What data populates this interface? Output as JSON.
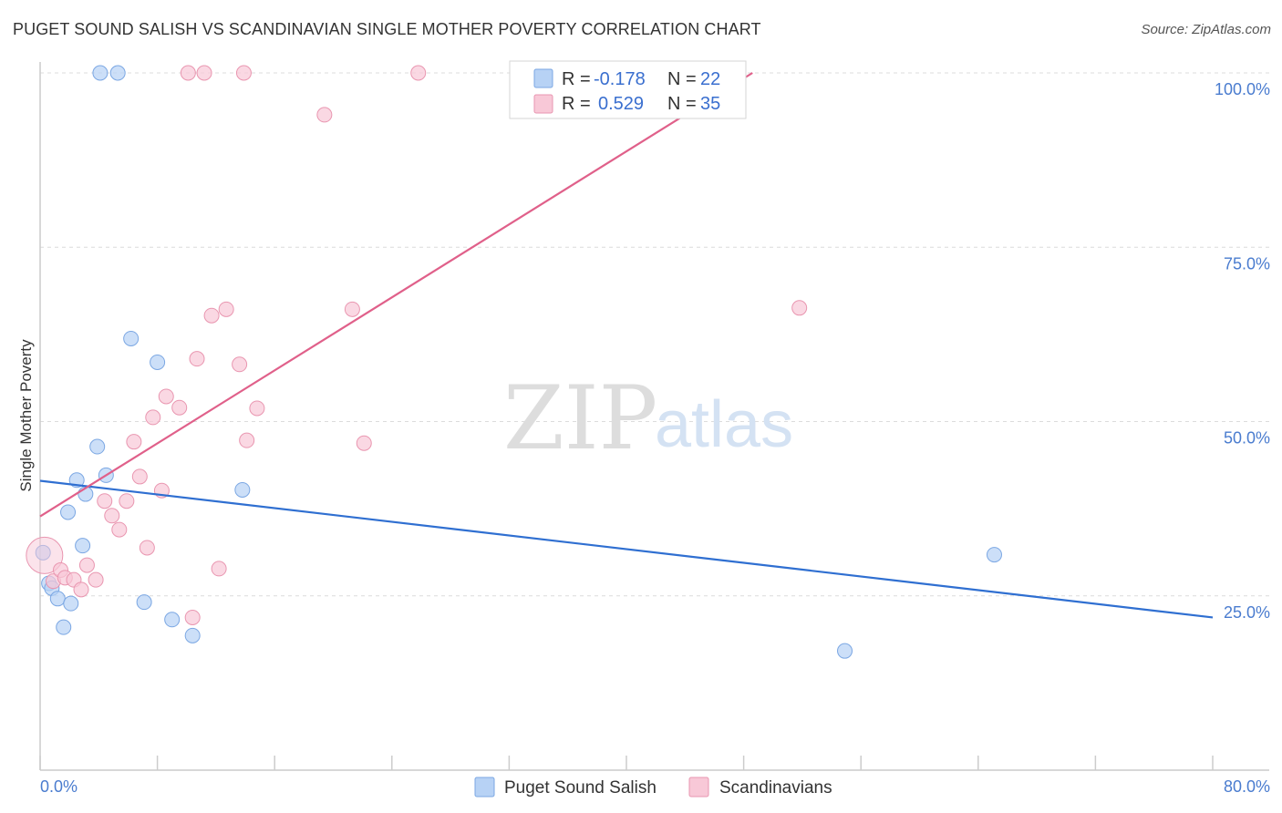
{
  "title": "PUGET SOUND SALISH VS SCANDINAVIAN SINGLE MOTHER POVERTY CORRELATION CHART",
  "source": "Source: ZipAtlas.com",
  "watermark": {
    "zip": "ZIP",
    "atlas": "atlas"
  },
  "legend": {
    "r_label": "R =",
    "n_label": "N =",
    "rows": [
      {
        "r": "-0.178",
        "n": "22"
      },
      {
        "r": "0.529",
        "n": "35"
      }
    ]
  },
  "chart_data": {
    "type": "scatter",
    "xlabel": "",
    "ylabel": "Single Mother Poverty",
    "xlim": [
      0,
      80
    ],
    "ylim": [
      0,
      100
    ],
    "x_tick_labels": [
      "0.0%",
      "80.0%"
    ],
    "y_ticks": [
      25,
      50,
      75,
      100
    ],
    "y_tick_labels": [
      "25.0%",
      "50.0%",
      "75.0%",
      "100.0%"
    ],
    "colors": {
      "blue_fill": "#b7d2f5",
      "blue_stroke": "#7ba7e3",
      "blue_line": "#2f6fd1",
      "pink_fill": "#f8c8d7",
      "pink_stroke": "#e996b0",
      "pink_line": "#e0608a"
    },
    "series": [
      {
        "name": "Puget Sound Salish",
        "color": "blue",
        "points": [
          [
            0.2,
            31.2
          ],
          [
            0.6,
            26.8
          ],
          [
            0.8,
            26.1
          ],
          [
            1.2,
            24.6
          ],
          [
            1.6,
            20.5
          ],
          [
            1.9,
            37
          ],
          [
            2.1,
            23.9
          ],
          [
            2.5,
            41.6
          ],
          [
            2.9,
            32.2
          ],
          [
            3.1,
            39.6
          ],
          [
            3.9,
            46.4
          ],
          [
            4.1,
            100
          ],
          [
            4.5,
            42.3
          ],
          [
            5.3,
            100
          ],
          [
            6.2,
            61.9
          ],
          [
            7.1,
            24.1
          ],
          [
            8.0,
            58.5
          ],
          [
            9.0,
            21.6
          ],
          [
            10.4,
            19.3
          ],
          [
            13.8,
            40.2
          ],
          [
            54.9,
            17.1
          ],
          [
            65.1,
            30.9
          ]
        ],
        "trend": [
          [
            0,
            41.5
          ],
          [
            80,
            21.9
          ]
        ]
      },
      {
        "name": "Scandinavians",
        "color": "pink",
        "points": [
          [
            0.3,
            30.8
          ],
          [
            0.9,
            27.1
          ],
          [
            1.4,
            28.7
          ],
          [
            1.7,
            27.6
          ],
          [
            2.3,
            27.3
          ],
          [
            2.8,
            25.9
          ],
          [
            3.2,
            29.4
          ],
          [
            3.8,
            27.3
          ],
          [
            4.4,
            38.6
          ],
          [
            4.9,
            36.5
          ],
          [
            5.4,
            34.5
          ],
          [
            5.9,
            38.6
          ],
          [
            6.4,
            47.1
          ],
          [
            6.8,
            42.1
          ],
          [
            7.3,
            31.9
          ],
          [
            7.7,
            50.6
          ],
          [
            8.3,
            40.1
          ],
          [
            8.6,
            53.6
          ],
          [
            9.5,
            52
          ],
          [
            10.1,
            100
          ],
          [
            10.4,
            21.9
          ],
          [
            10.7,
            59
          ],
          [
            11.2,
            100
          ],
          [
            11.7,
            65.2
          ],
          [
            12.2,
            28.9
          ],
          [
            12.7,
            66.1
          ],
          [
            13.6,
            58.2
          ],
          [
            13.9,
            100
          ],
          [
            14.1,
            47.3
          ],
          [
            14.8,
            51.9
          ],
          [
            19.4,
            94
          ],
          [
            21.3,
            66.1
          ],
          [
            22.1,
            46.9
          ],
          [
            25.8,
            100
          ],
          [
            51.8,
            66.3
          ]
        ],
        "trend": [
          [
            0,
            36.4
          ],
          [
            48.6,
            100
          ]
        ]
      }
    ]
  },
  "bottom_legend": [
    {
      "label": "Puget Sound Salish"
    },
    {
      "label": "Scandinavians"
    }
  ]
}
